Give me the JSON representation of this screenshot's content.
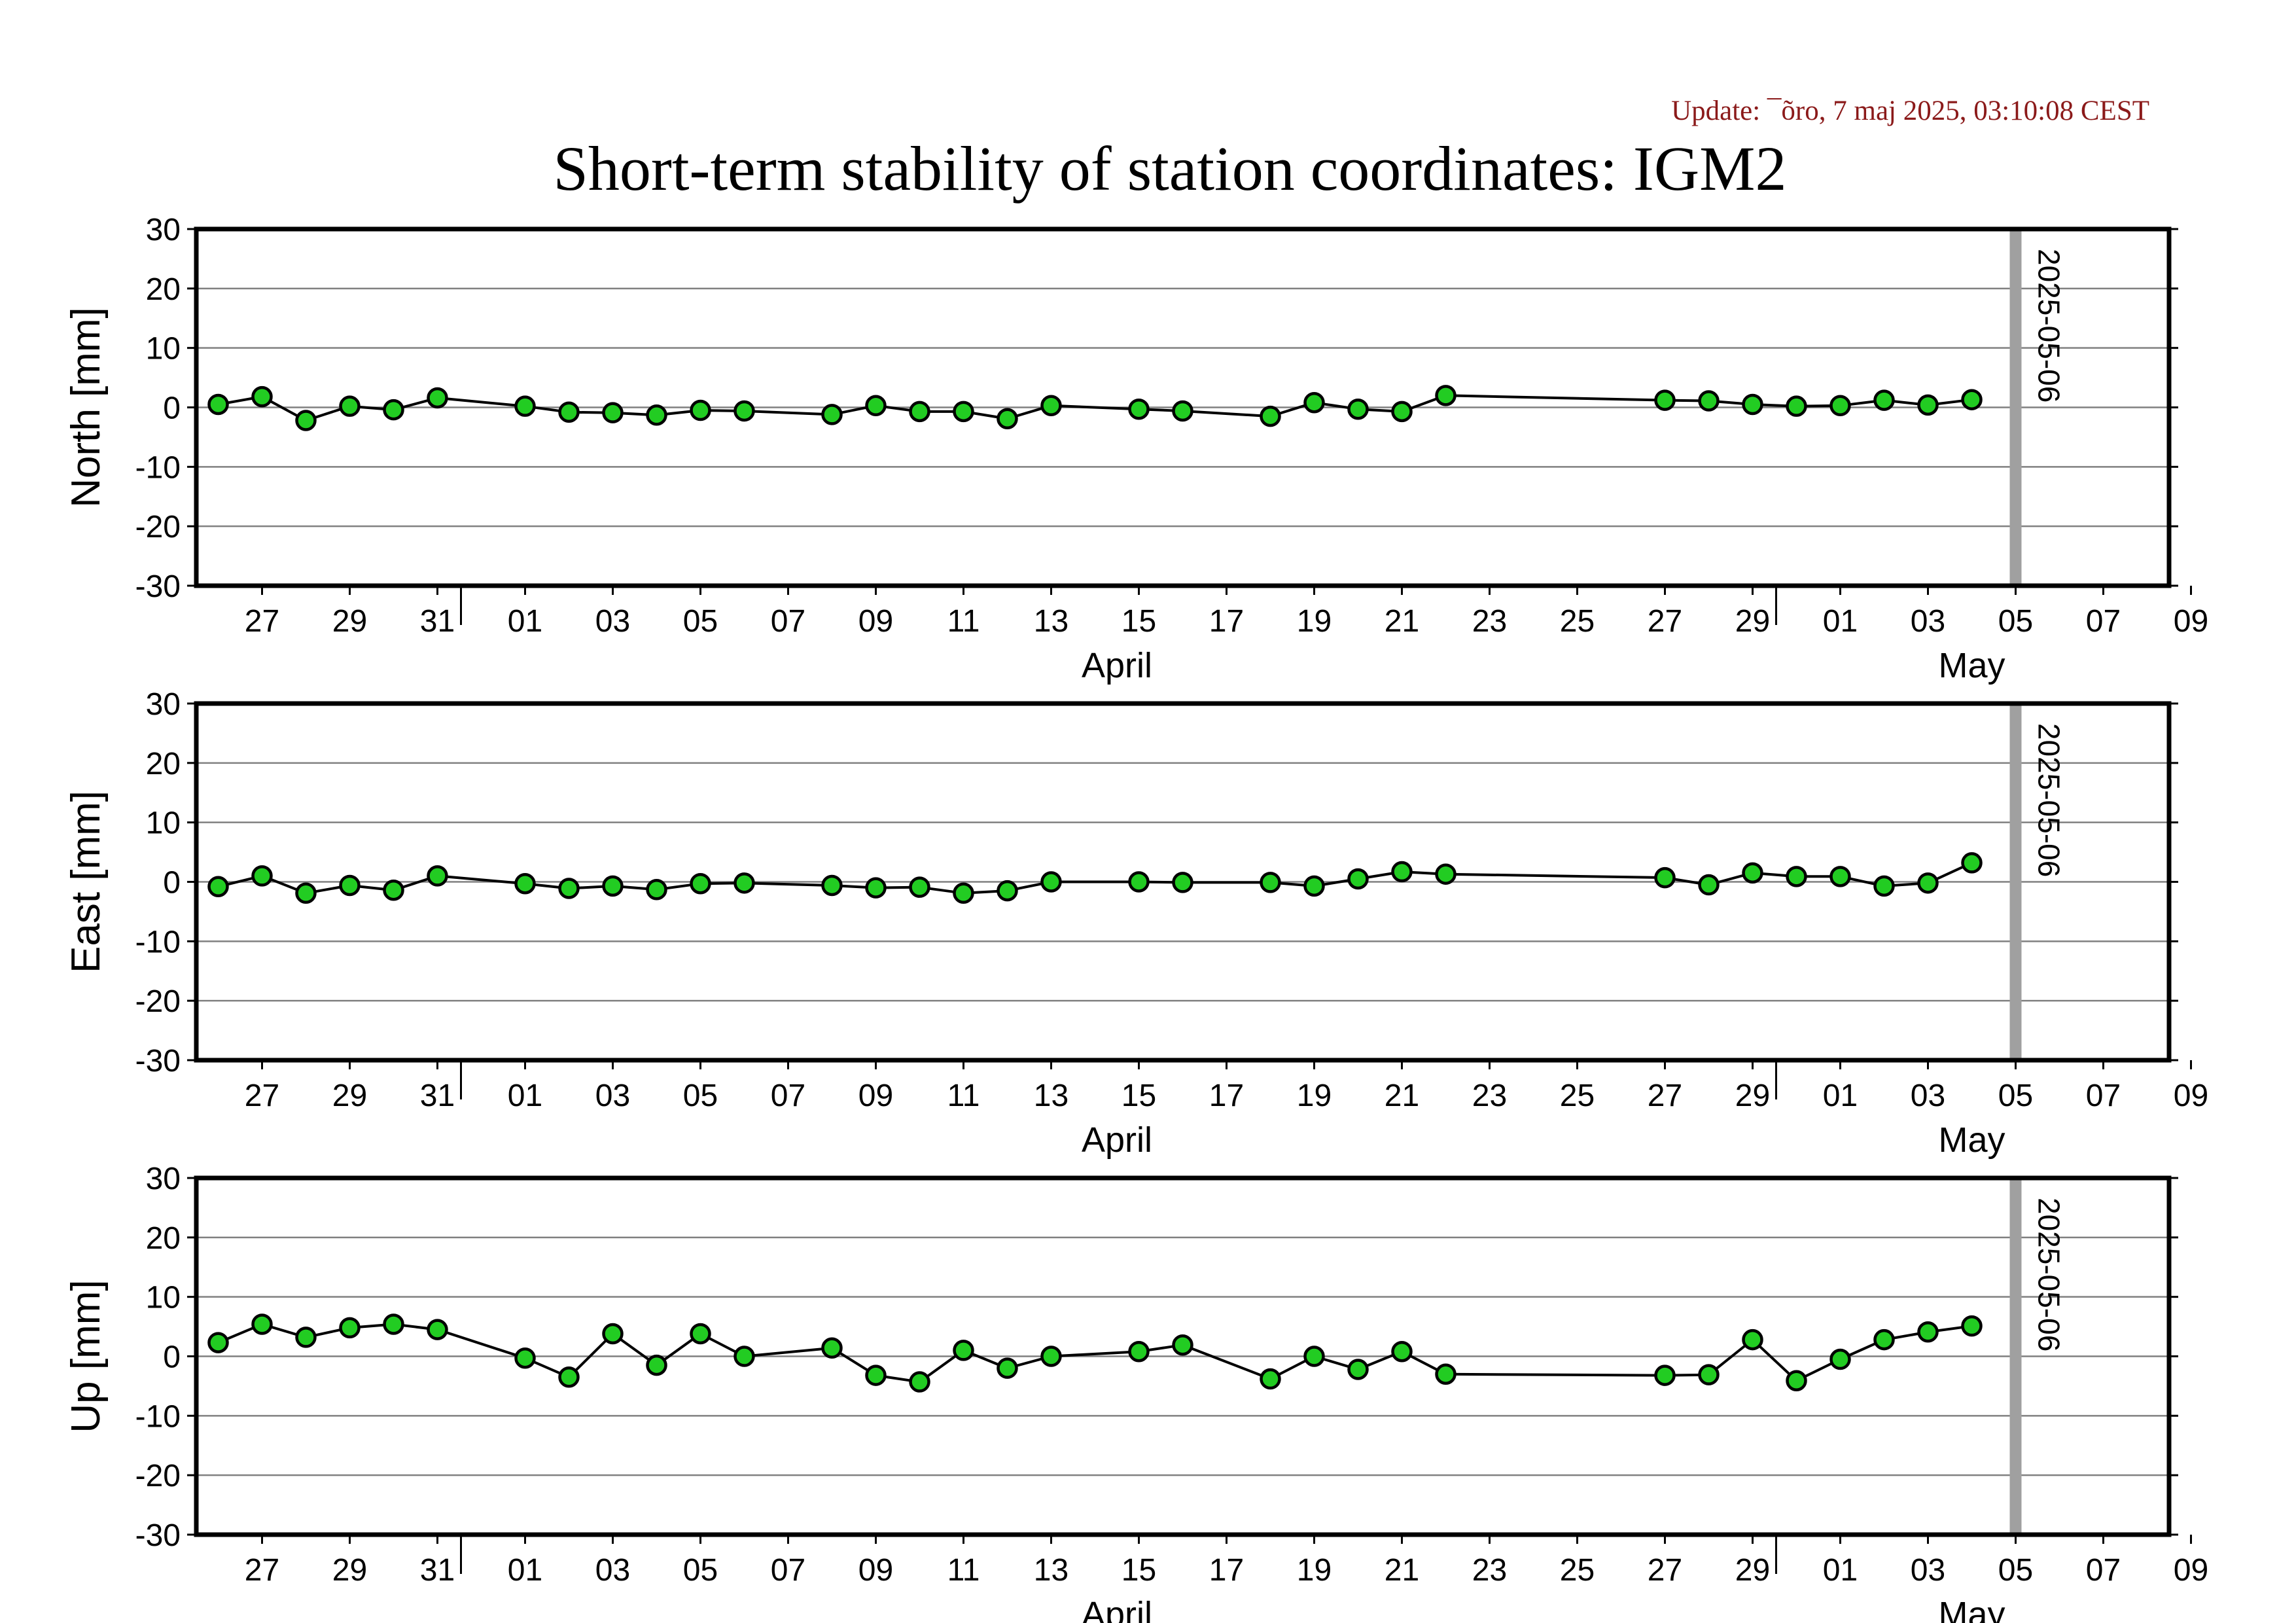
{
  "header": {
    "update_text": "Update: ¯õro, 7 maj 2025, 03:10:08 CEST",
    "title": "Short-term stability of station coordinates: IGM2"
  },
  "colors": {
    "marker_fill": "#22cc22",
    "marker_stroke": "#000000",
    "line": "#000000",
    "grid": "#808080",
    "date_marker": "#a0a0a0",
    "update_text": "#8b1a1a"
  },
  "chart_data": [
    {
      "type": "line",
      "id": "north",
      "ylabel": "North [mm]",
      "ylim": [
        -30,
        30
      ],
      "yticks": [
        "-30",
        "-20",
        "-10",
        "0",
        "10",
        "20",
        "30"
      ],
      "xlim": [
        "2025-03-25T12:00",
        "2025-05-09T12:00"
      ],
      "xtick_labels": [
        "27",
        "29",
        "31",
        "01",
        "03",
        "05",
        "07",
        "09",
        "11",
        "13",
        "15",
        "17",
        "19",
        "21",
        "23",
        "25",
        "27",
        "29",
        "01",
        "03",
        "05",
        "07",
        "09"
      ],
      "months": [
        "April",
        "May"
      ],
      "grid": "horizontal",
      "marker_line": {
        "date": "2025-05-06",
        "label": "2025-05-06"
      },
      "x": [
        "2025-03-26",
        "2025-03-27",
        "2025-03-28",
        "2025-03-29",
        "2025-03-30",
        "2025-03-31",
        "2025-04-02",
        "2025-04-03",
        "2025-04-04",
        "2025-04-05",
        "2025-04-06",
        "2025-04-07",
        "2025-04-09",
        "2025-04-10",
        "2025-04-11",
        "2025-04-12",
        "2025-04-13",
        "2025-04-14",
        "2025-04-16",
        "2025-04-17",
        "2025-04-19",
        "2025-04-20",
        "2025-04-21",
        "2025-04-22",
        "2025-04-23",
        "2025-04-28",
        "2025-04-29",
        "2025-04-30",
        "2025-05-01",
        "2025-05-02",
        "2025-05-03",
        "2025-05-04",
        "2025-05-05"
      ],
      "y": [
        0.5,
        1.8,
        -2.2,
        0.2,
        -0.4,
        1.6,
        0.2,
        -0.8,
        -0.9,
        -1.3,
        -0.5,
        -0.6,
        -1.2,
        0.3,
        -0.7,
        -0.7,
        -1.9,
        0.3,
        -0.3,
        -0.6,
        -1.5,
        0.8,
        -0.3,
        -0.7,
        2.0,
        1.2,
        1.1,
        0.5,
        0.2,
        0.3,
        1.2,
        0.4,
        1.3
      ]
    },
    {
      "type": "line",
      "id": "east",
      "ylabel": "East [mm]",
      "ylim": [
        -30,
        30
      ],
      "yticks": [
        "-30",
        "-20",
        "-10",
        "0",
        "10",
        "20",
        "30"
      ],
      "xlim": [
        "2025-03-25T12:00",
        "2025-05-09T12:00"
      ],
      "xtick_labels": [
        "27",
        "29",
        "31",
        "01",
        "03",
        "05",
        "07",
        "09",
        "11",
        "13",
        "15",
        "17",
        "19",
        "21",
        "23",
        "25",
        "27",
        "29",
        "01",
        "03",
        "05",
        "07",
        "09"
      ],
      "months": [
        "April",
        "May"
      ],
      "grid": "horizontal",
      "marker_line": {
        "date": "2025-05-06",
        "label": "2025-05-06"
      },
      "x": [
        "2025-03-26",
        "2025-03-27",
        "2025-03-28",
        "2025-03-29",
        "2025-03-30",
        "2025-03-31",
        "2025-04-02",
        "2025-04-03",
        "2025-04-04",
        "2025-04-05",
        "2025-04-06",
        "2025-04-07",
        "2025-04-09",
        "2025-04-10",
        "2025-04-11",
        "2025-04-12",
        "2025-04-13",
        "2025-04-14",
        "2025-04-16",
        "2025-04-17",
        "2025-04-19",
        "2025-04-20",
        "2025-04-21",
        "2025-04-22",
        "2025-04-23",
        "2025-04-28",
        "2025-04-29",
        "2025-04-30",
        "2025-05-01",
        "2025-05-02",
        "2025-05-03",
        "2025-05-04",
        "2025-05-05"
      ],
      "y": [
        -0.8,
        1.0,
        -1.9,
        -0.6,
        -1.4,
        1.0,
        -0.3,
        -1.1,
        -0.7,
        -1.3,
        -0.3,
        -0.2,
        -0.6,
        -1.0,
        -0.9,
        -1.9,
        -1.5,
        0.0,
        0.0,
        -0.1,
        -0.1,
        -0.7,
        0.5,
        1.7,
        1.3,
        0.7,
        -0.5,
        1.5,
        0.9,
        0.9,
        -0.7,
        -0.2,
        3.2
      ]
    },
    {
      "type": "line",
      "id": "up",
      "ylabel": "Up [mm]",
      "ylim": [
        -30,
        30
      ],
      "yticks": [
        "-30",
        "-20",
        "-10",
        "0",
        "10",
        "20",
        "30"
      ],
      "xlim": [
        "2025-03-25T12:00",
        "2025-05-09T12:00"
      ],
      "xtick_labels": [
        "27",
        "29",
        "31",
        "01",
        "03",
        "05",
        "07",
        "09",
        "11",
        "13",
        "15",
        "17",
        "19",
        "21",
        "23",
        "25",
        "27",
        "29",
        "01",
        "03",
        "05",
        "07",
        "09"
      ],
      "months": [
        "April",
        "May"
      ],
      "grid": "horizontal",
      "marker_line": {
        "date": "2025-05-06",
        "label": "2025-05-06"
      },
      "x": [
        "2025-03-26",
        "2025-03-27",
        "2025-03-28",
        "2025-03-29",
        "2025-03-30",
        "2025-03-31",
        "2025-04-02",
        "2025-04-03",
        "2025-04-04",
        "2025-04-05",
        "2025-04-06",
        "2025-04-07",
        "2025-04-09",
        "2025-04-10",
        "2025-04-11",
        "2025-04-12",
        "2025-04-13",
        "2025-04-14",
        "2025-04-16",
        "2025-04-17",
        "2025-04-19",
        "2025-04-20",
        "2025-04-21",
        "2025-04-22",
        "2025-04-23",
        "2025-04-28",
        "2025-04-29",
        "2025-04-30",
        "2025-05-01",
        "2025-05-02",
        "2025-05-03",
        "2025-05-04",
        "2025-05-05"
      ],
      "y": [
        2.3,
        5.4,
        3.2,
        4.8,
        5.4,
        4.5,
        -0.3,
        -3.5,
        3.8,
        -1.5,
        3.8,
        0.0,
        1.4,
        -3.2,
        -4.3,
        1.0,
        -2.0,
        0.0,
        0.8,
        1.9,
        -3.8,
        0.0,
        -2.2,
        0.8,
        -3.0,
        -3.2,
        -3.1,
        2.8,
        -4.1,
        -0.5,
        2.8,
        4.1,
        5.1
      ]
    }
  ]
}
